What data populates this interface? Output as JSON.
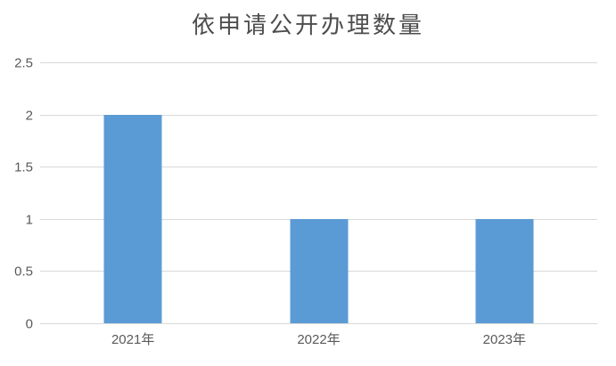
{
  "colors": {
    "bar": "#5b9bd5",
    "gridline": "#d9d9d9",
    "axis_line": "#d9d9d9",
    "axis_label_text": "#595959",
    "title_text": "#4d4d4d",
    "background": "#ffffff"
  },
  "chart_data": {
    "type": "bar",
    "title": "依申请公开办理数量",
    "categories": [
      "2021年",
      "2022年",
      "2023年"
    ],
    "values": [
      2,
      1,
      1
    ],
    "xlabel": "",
    "ylabel": "",
    "ylim": [
      0,
      2.5
    ],
    "ytick_step": 0.5,
    "yticks": [
      "0",
      "0.5",
      "1",
      "1.5",
      "2",
      "2.5"
    ],
    "grid": "horizontal",
    "legend": "none"
  }
}
